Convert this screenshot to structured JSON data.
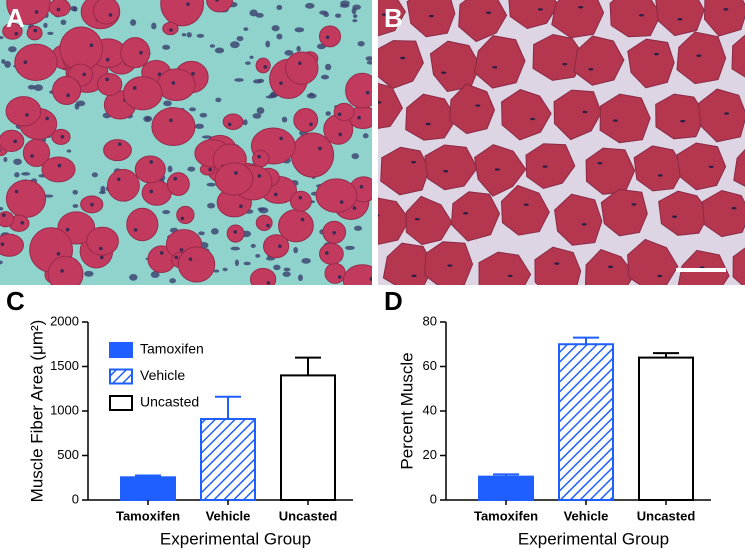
{
  "images": [
    {
      "label": "A"
    },
    {
      "label": "B"
    }
  ],
  "chart_data": [
    {
      "type": "bar",
      "label": "C",
      "y_label": "Muscle Fiber Area (μm²)",
      "x_label": "Experimental Group",
      "categories": [
        "Tamoxifen",
        "Vehicle",
        "Uncasted"
      ],
      "values": [
        255,
        910,
        1400
      ],
      "errors": [
        20,
        250,
        200
      ],
      "colors": [
        "#1f5fff",
        "#1f5fff",
        "#000000"
      ],
      "fills": [
        "solid",
        "hatch",
        "open"
      ],
      "ylim": [
        0,
        2000
      ],
      "yticks": [
        0,
        500,
        1000,
        1500,
        2000
      ],
      "legend": "upper left"
    },
    {
      "type": "bar",
      "label": "D",
      "y_label": "Percent Muscle",
      "x_label": "Experimental Group",
      "categories": [
        "Tamoxifen",
        "Vehicle",
        "Uncasted"
      ],
      "values": [
        10.5,
        70,
        64
      ],
      "errors": [
        1,
        3,
        2
      ],
      "colors": [
        "#1f5fff",
        "#1f5fff",
        "#000000"
      ],
      "fills": [
        "solid",
        "hatch",
        "open"
      ],
      "ylim": [
        0,
        80
      ],
      "yticks": [
        0,
        20,
        40,
        60,
        80
      ]
    }
  ]
}
